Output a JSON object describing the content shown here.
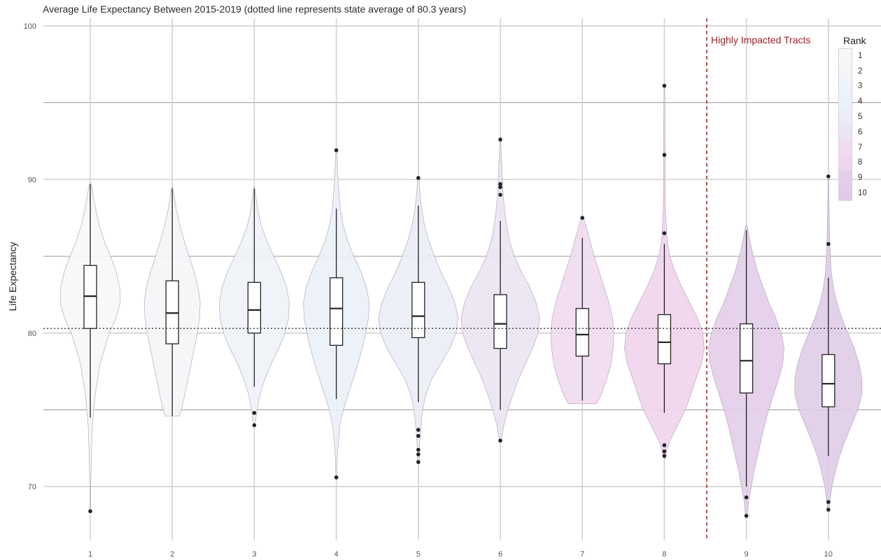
{
  "chart_data": {
    "type": "violin",
    "title": "Average Life Expectancy Between 2015-2019 (dotted line represents state average of 80.3 years)",
    "xlabel": "",
    "ylabel": "Life Expectancy",
    "ylim": [
      66.5,
      100.5
    ],
    "y_ticks": [
      70,
      80,
      90,
      100
    ],
    "categories": [
      "1",
      "2",
      "3",
      "4",
      "5",
      "6",
      "7",
      "8",
      "9",
      "10"
    ],
    "reference_line": {
      "y": 80.3,
      "style": "dotted"
    },
    "annotation": {
      "text": "Highly Impacted Tracts",
      "x_between": [
        "8",
        "9"
      ],
      "color": "#9b2226"
    },
    "legend": {
      "title": "Rank",
      "placement": "right",
      "entries": [
        "1",
        "2",
        "3",
        "4",
        "5",
        "6",
        "7",
        "8",
        "9",
        "10"
      ]
    },
    "fill_colors": [
      "#f7f7f7",
      "#f3f5f7",
      "#eef3f8",
      "#eaf1f7",
      "#eaedf5",
      "#ebe4f2",
      "#f0dcf0",
      "#f0d4ec",
      "#e3cde9",
      "#e0cce7"
    ],
    "groups": [
      {
        "rank": "1",
        "min": 74.5,
        "q1": 80.3,
        "median": 82.4,
        "q3": 84.4,
        "max": 89.7,
        "outliers": [
          68.4
        ],
        "violin_half_widths": [
          [
            68.4,
            0.3
          ],
          [
            70,
            0.6
          ],
          [
            72,
            1.5
          ],
          [
            74,
            3
          ],
          [
            76,
            7
          ],
          [
            78,
            14
          ],
          [
            80,
            27
          ],
          [
            81,
            37
          ],
          [
            82,
            43
          ],
          [
            83,
            42
          ],
          [
            84,
            37
          ],
          [
            85,
            29
          ],
          [
            86,
            20
          ],
          [
            87,
            13
          ],
          [
            88,
            8
          ],
          [
            89,
            4
          ],
          [
            89.8,
            1
          ]
        ]
      },
      {
        "rank": "2",
        "min": 74.6,
        "q1": 79.3,
        "median": 81.3,
        "q3": 83.4,
        "max": 89.4,
        "outliers": [],
        "violin_half_widths": [
          [
            74.6,
            10
          ],
          [
            75,
            13
          ],
          [
            76,
            18
          ],
          [
            78,
            27
          ],
          [
            80,
            36
          ],
          [
            81,
            39
          ],
          [
            82,
            40
          ],
          [
            83,
            37
          ],
          [
            84,
            31
          ],
          [
            85,
            24
          ],
          [
            86,
            17
          ],
          [
            87,
            11
          ],
          [
            88,
            6
          ],
          [
            89,
            2.5
          ],
          [
            89.5,
            1
          ]
        ]
      },
      {
        "rank": "3",
        "min": 76.5,
        "q1": 80.0,
        "median": 81.5,
        "q3": 83.3,
        "max": 89.4,
        "outliers": [
          74.8,
          74.0
        ],
        "violin_half_widths": [
          [
            74,
            1
          ],
          [
            75,
            4
          ],
          [
            76,
            8
          ],
          [
            77,
            15
          ],
          [
            78,
            24
          ],
          [
            79,
            35
          ],
          [
            80,
            44
          ],
          [
            81,
            49
          ],
          [
            82,
            50
          ],
          [
            83,
            46
          ],
          [
            84,
            38
          ],
          [
            85,
            28
          ],
          [
            86,
            18
          ],
          [
            87,
            10
          ],
          [
            88,
            5
          ],
          [
            89,
            2
          ],
          [
            89.5,
            0.5
          ]
        ]
      },
      {
        "rank": "4",
        "min": 75.7,
        "q1": 79.2,
        "median": 81.6,
        "q3": 83.6,
        "max": 88.1,
        "outliers": [
          70.6,
          91.9
        ],
        "violin_half_widths": [
          [
            70.5,
            0.5
          ],
          [
            72,
            1.5
          ],
          [
            74,
            5
          ],
          [
            75,
            10
          ],
          [
            76,
            17
          ],
          [
            77,
            24
          ],
          [
            78,
            31
          ],
          [
            79,
            37
          ],
          [
            80,
            42
          ],
          [
            81,
            46
          ],
          [
            82,
            47
          ],
          [
            83,
            43
          ],
          [
            84,
            35
          ],
          [
            85,
            25
          ],
          [
            86,
            16
          ],
          [
            87,
            10
          ],
          [
            88,
            6
          ],
          [
            89,
            4
          ],
          [
            90,
            2.5
          ],
          [
            91,
            1.5
          ],
          [
            92,
            0.5
          ]
        ]
      },
      {
        "rank": "5",
        "min": 75.5,
        "q1": 79.7,
        "median": 81.1,
        "q3": 83.3,
        "max": 88.3,
        "outliers": [
          71.6,
          72.1,
          72.4,
          73.3,
          73.7,
          90.1
        ],
        "violin_half_widths": [
          [
            71.5,
            1
          ],
          [
            73,
            2
          ],
          [
            75,
            6
          ],
          [
            76,
            11
          ],
          [
            77,
            19
          ],
          [
            78,
            32
          ],
          [
            79,
            45
          ],
          [
            80,
            54
          ],
          [
            81,
            57
          ],
          [
            82,
            52
          ],
          [
            83,
            43
          ],
          [
            84,
            32
          ],
          [
            85,
            23
          ],
          [
            86,
            15
          ],
          [
            87,
            9
          ],
          [
            88,
            5
          ],
          [
            89,
            2.5
          ],
          [
            90,
            1
          ]
        ]
      },
      {
        "rank": "6",
        "min": 75.0,
        "q1": 79.0,
        "median": 80.6,
        "q3": 82.5,
        "max": 87.3,
        "outliers": [
          73.0,
          89.0,
          89.5,
          89.7,
          92.6
        ],
        "violin_half_widths": [
          [
            73,
            1
          ],
          [
            74,
            5
          ],
          [
            75,
            11
          ],
          [
            76,
            18
          ],
          [
            77,
            26
          ],
          [
            78,
            36
          ],
          [
            79,
            46
          ],
          [
            80,
            54
          ],
          [
            81,
            56
          ],
          [
            82,
            51
          ],
          [
            83,
            42
          ],
          [
            84,
            30
          ],
          [
            85,
            20
          ],
          [
            86,
            13
          ],
          [
            87,
            9
          ],
          [
            88,
            6
          ],
          [
            89,
            4
          ],
          [
            90,
            3
          ],
          [
            91,
            2
          ],
          [
            92,
            1
          ],
          [
            92.7,
            0.3
          ]
        ]
      },
      {
        "rank": "7",
        "min": 75.6,
        "q1": 78.5,
        "median": 79.9,
        "q3": 81.6,
        "max": 86.2,
        "outliers": [
          87.5
        ],
        "violin_half_widths": [
          [
            75.4,
            20
          ],
          [
            76,
            27
          ],
          [
            77,
            35
          ],
          [
            78,
            41
          ],
          [
            79,
            44
          ],
          [
            80,
            45
          ],
          [
            81,
            43
          ],
          [
            82,
            38
          ],
          [
            83,
            31
          ],
          [
            84,
            24
          ],
          [
            85,
            17
          ],
          [
            86,
            11
          ],
          [
            87,
            5
          ],
          [
            87.6,
            1
          ]
        ]
      },
      {
        "rank": "8",
        "min": 74.8,
        "q1": 78.0,
        "median": 79.4,
        "q3": 81.2,
        "max": 85.8,
        "outliers": [
          72.0,
          72.3,
          72.7,
          86.5,
          91.6,
          96.1
        ],
        "violin_half_widths": [
          [
            71.8,
            1
          ],
          [
            72.5,
            4
          ],
          [
            73,
            8
          ],
          [
            74,
            19
          ],
          [
            75,
            30
          ],
          [
            76,
            38
          ],
          [
            77,
            45
          ],
          [
            78,
            53
          ],
          [
            79,
            57
          ],
          [
            80,
            55
          ],
          [
            81,
            47
          ],
          [
            82,
            36
          ],
          [
            83,
            25
          ],
          [
            84,
            15
          ],
          [
            85,
            8
          ],
          [
            86,
            4
          ],
          [
            88,
            1.5
          ],
          [
            90,
            1
          ],
          [
            92,
            1
          ],
          [
            96.2,
            0.5
          ]
        ]
      },
      {
        "rank": "9",
        "min": 70.0,
        "q1": 76.1,
        "median": 78.2,
        "q3": 80.6,
        "max": 86.7,
        "outliers": [
          68.1,
          69.3
        ],
        "violin_half_widths": [
          [
            68,
            1
          ],
          [
            69,
            3
          ],
          [
            70,
            7
          ],
          [
            71,
            11
          ],
          [
            72,
            16
          ],
          [
            73,
            21
          ],
          [
            74,
            26
          ],
          [
            75,
            32
          ],
          [
            76,
            39
          ],
          [
            77,
            46
          ],
          [
            78,
            52
          ],
          [
            79,
            54
          ],
          [
            80,
            50
          ],
          [
            81,
            42
          ],
          [
            82,
            32
          ],
          [
            83,
            24
          ],
          [
            84,
            16
          ],
          [
            85,
            10
          ],
          [
            86,
            5
          ],
          [
            87,
            1
          ]
        ]
      },
      {
        "rank": "10",
        "min": 72.0,
        "q1": 75.2,
        "median": 76.7,
        "q3": 78.6,
        "max": 83.6,
        "outliers": [
          68.5,
          69.0,
          85.8,
          90.2
        ],
        "violin_half_widths": [
          [
            68.5,
            1
          ],
          [
            69,
            2
          ],
          [
            70,
            5
          ],
          [
            71,
            10
          ],
          [
            72,
            16
          ],
          [
            73,
            24
          ],
          [
            74,
            33
          ],
          [
            75,
            42
          ],
          [
            76,
            48
          ],
          [
            77,
            48
          ],
          [
            78,
            44
          ],
          [
            79,
            37
          ],
          [
            80,
            28
          ],
          [
            81,
            19
          ],
          [
            82,
            12
          ],
          [
            83,
            7
          ],
          [
            84,
            4
          ],
          [
            86,
            2
          ],
          [
            88,
            1
          ],
          [
            90.2,
            0.5
          ]
        ]
      }
    ]
  }
}
